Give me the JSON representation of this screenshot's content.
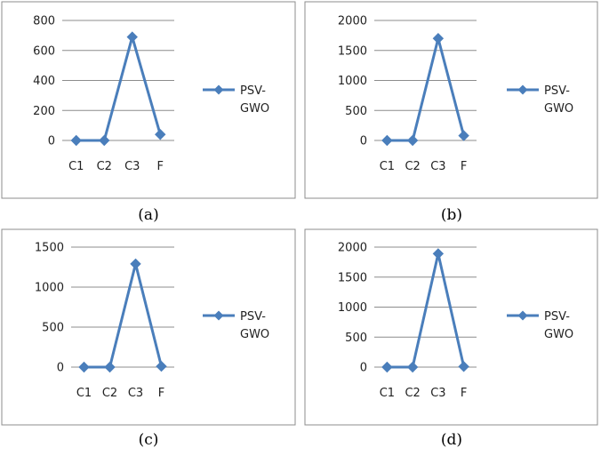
{
  "chart_data": [
    {
      "type": "line",
      "caption": "(a)",
      "categories": [
        "C1",
        "C2",
        "C3",
        "F"
      ],
      "series": [
        {
          "name": "PSV-GWO",
          "values": [
            0,
            0,
            690,
            40
          ]
        }
      ],
      "ylim": [
        0,
        800
      ],
      "yticks": [
        0,
        200,
        400,
        600,
        800
      ],
      "grid": true,
      "legend": "right",
      "color": "#4a7ebb"
    },
    {
      "type": "line",
      "caption": "(b)",
      "categories": [
        "C1",
        "C2",
        "C3",
        "F"
      ],
      "series": [
        {
          "name": "PSV-GWO",
          "values": [
            0,
            0,
            1700,
            80
          ]
        }
      ],
      "ylim": [
        0,
        2000
      ],
      "yticks": [
        0,
        500,
        1000,
        1500,
        2000
      ],
      "grid": true,
      "legend": "right",
      "color": "#4a7ebb"
    },
    {
      "type": "line",
      "caption": "(c)",
      "categories": [
        "C1",
        "C2",
        "C3",
        "F"
      ],
      "series": [
        {
          "name": "PSV-GWO",
          "values": [
            0,
            0,
            1290,
            10
          ]
        }
      ],
      "ylim": [
        0,
        1500
      ],
      "yticks": [
        0,
        500,
        1000,
        1500
      ],
      "grid": true,
      "legend": "right",
      "color": "#4a7ebb"
    },
    {
      "type": "line",
      "caption": "(d)",
      "categories": [
        "C1",
        "C2",
        "C3",
        "F"
      ],
      "series": [
        {
          "name": "PSV-GWO",
          "values": [
            0,
            0,
            1890,
            10
          ]
        }
      ],
      "ylim": [
        0,
        2000
      ],
      "yticks": [
        0,
        500,
        1000,
        1500,
        2000
      ],
      "grid": true,
      "legend": "right",
      "color": "#4a7ebb"
    }
  ],
  "legend_lines": [
    "PSV-",
    "GWO"
  ]
}
